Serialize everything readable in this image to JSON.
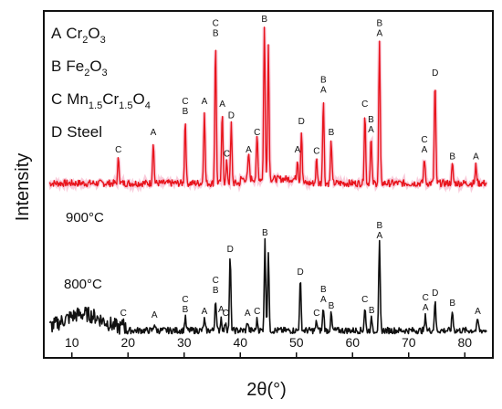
{
  "chart_data": {
    "type": "line",
    "xlabel": "2θ(°)",
    "ylabel": "Intensity",
    "xlim": [
      5,
      85
    ],
    "x_ticks": [
      10,
      20,
      30,
      40,
      50,
      60,
      70,
      80
    ],
    "legend": [
      {
        "key": "A",
        "formula": "Cr2O3"
      },
      {
        "key": "B",
        "formula": "Fe2O3"
      },
      {
        "key": "C",
        "formula": "Mn1.5Cr1.5O4"
      },
      {
        "key": "D",
        "formula": "Steel"
      }
    ],
    "series": [
      {
        "name": "900°C",
        "color": "#e8141c",
        "baseline": 0.06,
        "noise": 0.025,
        "peaks": [
          {
            "x": 18.3,
            "h": 0.18,
            "label": "C"
          },
          {
            "x": 24.5,
            "h": 0.3,
            "label": "A"
          },
          {
            "x": 30.2,
            "h": 0.45,
            "label": "C\nB"
          },
          {
            "x": 33.6,
            "h": 0.52,
            "label": "A"
          },
          {
            "x": 35.6,
            "h": 1.0,
            "label": "C\nB"
          },
          {
            "x": 36.8,
            "h": 0.5,
            "label": "A"
          },
          {
            "x": 37.6,
            "h": 0.15,
            "label": "C"
          },
          {
            "x": 38.4,
            "h": 0.42,
            "label": "D"
          },
          {
            "x": 41.5,
            "h": 0.18,
            "label": "A"
          },
          {
            "x": 43.0,
            "h": 0.3,
            "label": "C"
          },
          {
            "x": 44.3,
            "h": 1.1,
            "label": "B"
          },
          {
            "x": 45.0,
            "h": 0.95,
            "label": ""
          },
          {
            "x": 50.2,
            "h": 0.18,
            "label": "A"
          },
          {
            "x": 50.9,
            "h": 0.38,
            "label": "D"
          },
          {
            "x": 53.6,
            "h": 0.17,
            "label": "C"
          },
          {
            "x": 54.8,
            "h": 0.6,
            "label": "B\nA"
          },
          {
            "x": 56.2,
            "h": 0.3,
            "label": "B"
          },
          {
            "x": 62.2,
            "h": 0.5,
            "label": "C"
          },
          {
            "x": 63.3,
            "h": 0.32,
            "label": "B\nA"
          },
          {
            "x": 64.8,
            "h": 1.0,
            "label": "B\nA"
          },
          {
            "x": 72.8,
            "h": 0.18,
            "label": "C\nA"
          },
          {
            "x": 74.7,
            "h": 0.72,
            "label": "D"
          },
          {
            "x": 77.8,
            "h": 0.13,
            "label": "B"
          },
          {
            "x": 82.0,
            "h": 0.13,
            "label": "A"
          }
        ]
      },
      {
        "name": "800°C",
        "color": "#111111",
        "baseline": 0.06,
        "noise": 0.035,
        "peaks": [
          {
            "x": 19.2,
            "h": 0.1,
            "label": "C"
          },
          {
            "x": 24.7,
            "h": 0.08,
            "label": "A"
          },
          {
            "x": 30.2,
            "h": 0.14,
            "label": "C\nB"
          },
          {
            "x": 33.6,
            "h": 0.12,
            "label": "A"
          },
          {
            "x": 35.6,
            "h": 0.35,
            "label": "C\nB"
          },
          {
            "x": 36.6,
            "h": 0.14,
            "label": "A"
          },
          {
            "x": 37.4,
            "h": 0.1,
            "label": "C"
          },
          {
            "x": 38.2,
            "h": 0.8,
            "label": "D"
          },
          {
            "x": 41.3,
            "h": 0.1,
            "label": "A"
          },
          {
            "x": 43.0,
            "h": 0.12,
            "label": "C"
          },
          {
            "x": 44.4,
            "h": 0.98,
            "label": "B"
          },
          {
            "x": 45.0,
            "h": 0.85,
            "label": ""
          },
          {
            "x": 50.7,
            "h": 0.55,
            "label": "D"
          },
          {
            "x": 53.6,
            "h": 0.1,
            "label": "C"
          },
          {
            "x": 54.8,
            "h": 0.25,
            "label": "B\nA"
          },
          {
            "x": 56.2,
            "h": 0.18,
            "label": "B"
          },
          {
            "x": 62.2,
            "h": 0.25,
            "label": "C"
          },
          {
            "x": 63.4,
            "h": 0.13,
            "label": "B"
          },
          {
            "x": 64.8,
            "h": 0.95,
            "label": "B\nA"
          },
          {
            "x": 73.0,
            "h": 0.16,
            "label": "C\nA"
          },
          {
            "x": 74.7,
            "h": 0.32,
            "label": "D"
          },
          {
            "x": 77.8,
            "h": 0.21,
            "label": "B"
          },
          {
            "x": 82.3,
            "h": 0.12,
            "label": "A"
          }
        ]
      }
    ],
    "grid": false,
    "legend_placement": "top-left"
  }
}
